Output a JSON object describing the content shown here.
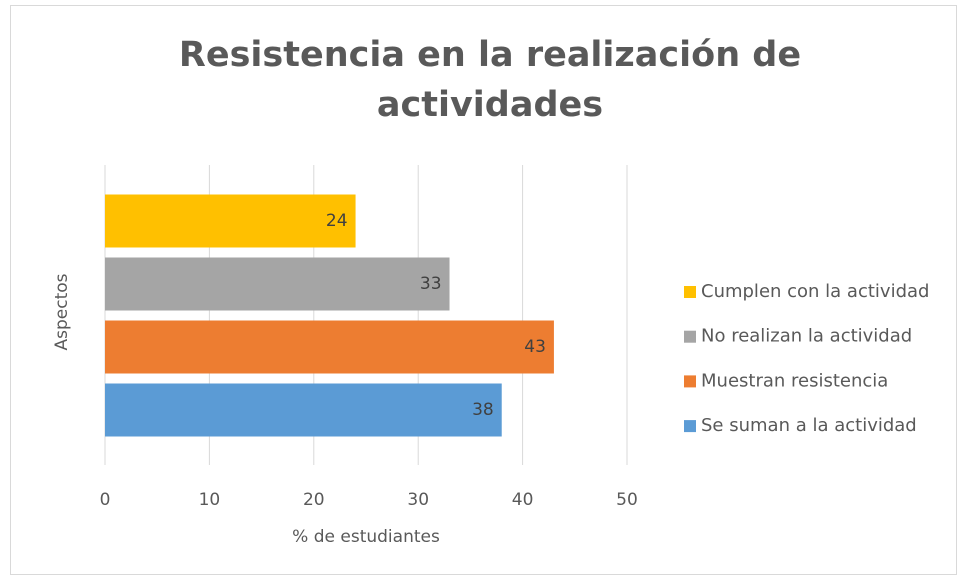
{
  "chart_data": {
    "type": "bar",
    "orientation": "horizontal",
    "title": "Resistencia en la realización de actividades",
    "xlabel": "% de estudiantes",
    "ylabel": "Aspectos",
    "categories": [
      null
    ],
    "series": [
      {
        "name": "Se suman a la actividad",
        "color": "#5b9bd5",
        "values": [
          38
        ]
      },
      {
        "name": "Muestran resistencia",
        "color": "#ed7d31",
        "values": [
          43
        ]
      },
      {
        "name": "No realizan la actividad",
        "color": "#a5a5a5",
        "values": [
          33
        ]
      },
      {
        "name": "Cumplen con la actividad",
        "color": "#ffc000",
        "values": [
          24
        ]
      }
    ],
    "xlim": [
      0,
      50
    ],
    "xticks": [
      0,
      10,
      20,
      30,
      40,
      50
    ],
    "grid": true,
    "legend": "right"
  }
}
